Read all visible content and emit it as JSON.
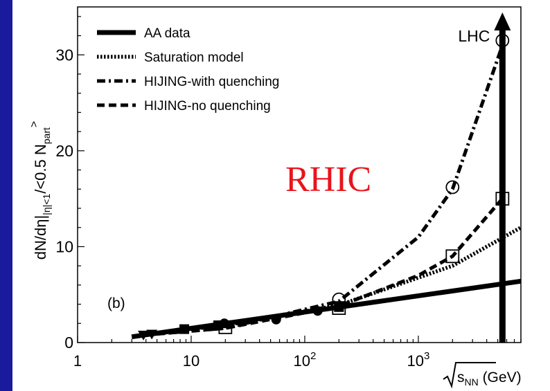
{
  "chart_data": {
    "type": "line",
    "panel_label": "(b)",
    "annotation_rhic": "RHIC",
    "annotation_lhc": "LHC",
    "xlabel": {
      "radical_text": "s",
      "sub": "NN",
      "unit": " (GeV)"
    },
    "ylabel": {
      "main": "dN/dη|",
      "sub": "|η|<1",
      "tail": "/<0.5 N",
      "sub2": "part",
      "sup": ">"
    },
    "x_scale": "log",
    "xlim": [
      1,
      8000
    ],
    "ylim": [
      0,
      35
    ],
    "x_ticks": [
      {
        "value": 1,
        "label": "1"
      },
      {
        "value": 10,
        "label": "10"
      },
      {
        "value": 100,
        "label": "10",
        "exp": "2"
      },
      {
        "value": 1000,
        "label": "10",
        "exp": "3"
      }
    ],
    "y_ticks": [
      {
        "value": 0,
        "label": "0"
      },
      {
        "value": 10,
        "label": "10"
      },
      {
        "value": 20,
        "label": "20"
      },
      {
        "value": 30,
        "label": "30"
      }
    ],
    "legend": {
      "position": "top-left",
      "entries": [
        {
          "label": "AA data",
          "style": "solid"
        },
        {
          "label": "Saturation model",
          "style": "dotted"
        },
        {
          "label": "HIJING-with quenching",
          "style": "dashdot"
        },
        {
          "label": "HIJING-no quenching",
          "style": "dashed"
        }
      ]
    },
    "series": [
      {
        "style": "solid",
        "x": [
          3,
          8000
        ],
        "y": [
          0.6,
          6.4
        ]
      },
      {
        "style": "dotted",
        "x": [
          4,
          20,
          200,
          2000,
          8000
        ],
        "y": [
          0.9,
          1.8,
          3.9,
          8.0,
          12.0
        ]
      },
      {
        "style": "dashdot",
        "x": [
          5,
          20,
          200,
          1000,
          2000,
          5500
        ],
        "y": [
          0.9,
          1.5,
          4.3,
          11.0,
          16.0,
          31.0
        ]
      },
      {
        "style": "dashed",
        "x": [
          5,
          20,
          200,
          1000,
          2000,
          5500
        ],
        "y": [
          0.9,
          1.5,
          3.8,
          7.0,
          9.0,
          15.0
        ]
      }
    ],
    "data_markers": [
      {
        "shape": "filled-triangle",
        "x": 3.8,
        "y": 0.8
      },
      {
        "shape": "filled-triangle",
        "x": 4.5,
        "y": 0.9
      },
      {
        "shape": "filled-square",
        "x": 8.7,
        "y": 1.4
      },
      {
        "shape": "filled-square",
        "x": 17.3,
        "y": 1.8
      },
      {
        "shape": "filled-circle",
        "x": 19.6,
        "y": 2.0
      },
      {
        "shape": "filled-circle",
        "x": 56,
        "y": 2.4
      },
      {
        "shape": "filled-circle",
        "x": 130,
        "y": 3.3
      },
      {
        "shape": "filled-square",
        "x": 200,
        "y": 3.7
      }
    ],
    "model_markers": [
      {
        "shape": "open-square",
        "x": 20,
        "y": 1.6
      },
      {
        "shape": "open-circle",
        "x": 200,
        "y": 4.5
      },
      {
        "shape": "open-square",
        "x": 200,
        "y": 3.6
      },
      {
        "shape": "open-circle",
        "x": 2000,
        "y": 16.2
      },
      {
        "shape": "open-square",
        "x": 2000,
        "y": 9.0
      },
      {
        "shape": "open-circle",
        "x": 5500,
        "y": 31.5
      },
      {
        "shape": "open-square",
        "x": 5500,
        "y": 15.0
      }
    ],
    "lhc_arrow_x": 5500
  },
  "colors": {
    "frame_bar": "#1a1a9c",
    "rhic": "#e8141c",
    "ink": "#000000"
  }
}
